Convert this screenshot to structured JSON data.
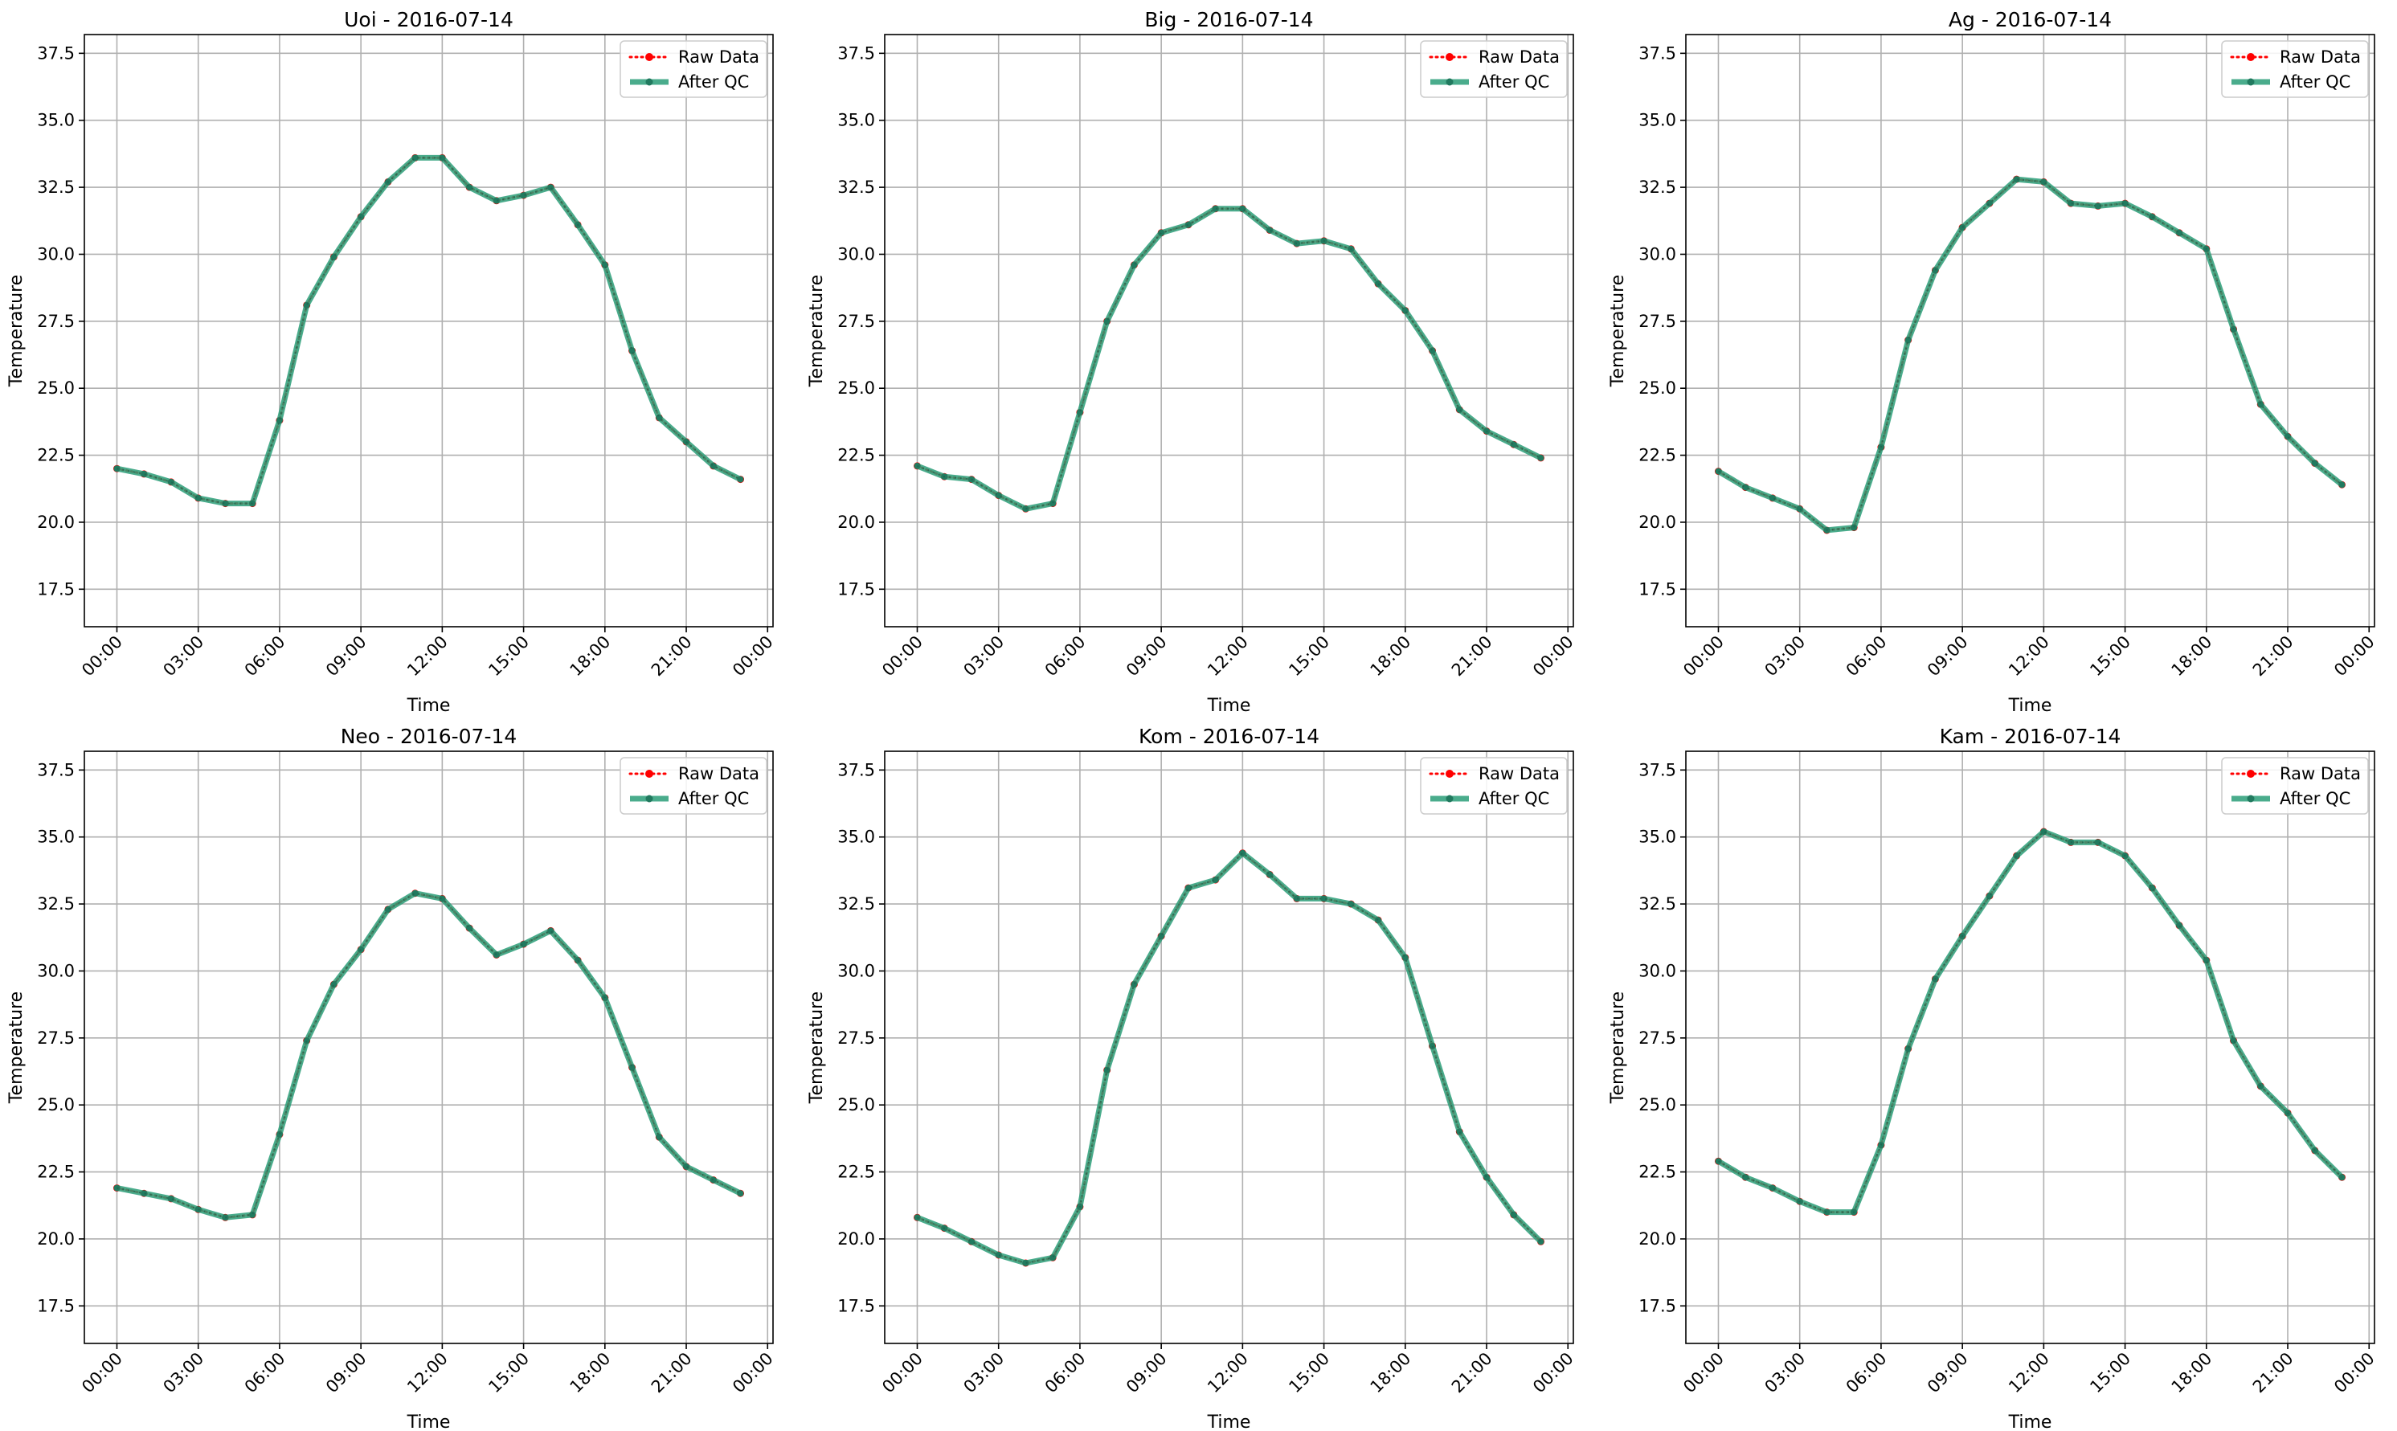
{
  "figure": {
    "colors": {
      "raw": "#ff0000",
      "qc": "#2a9d78",
      "grid": "#b0b0b0",
      "axes": "#000000"
    }
  },
  "chart_data": [
    {
      "type": "line",
      "title": "Uoi - 2016-07-14",
      "xlabel": "Time",
      "ylabel": "Temperature",
      "x_ticks": [
        "00:00",
        "03:00",
        "06:00",
        "09:00",
        "12:00",
        "15:00",
        "18:00",
        "21:00",
        "00:00"
      ],
      "y_ticks": [
        "17.5",
        "20.0",
        "22.5",
        "25.0",
        "27.5",
        "30.0",
        "32.5",
        "35.0",
        "37.5"
      ],
      "ylim": [
        16.1,
        38.2
      ],
      "xlim_hours": [
        -1.2,
        24.2
      ],
      "grid": true,
      "legend": "top-right",
      "x": [
        "00:00",
        "01:00",
        "02:00",
        "03:00",
        "04:00",
        "05:00",
        "06:00",
        "07:00",
        "08:00",
        "09:00",
        "10:00",
        "11:00",
        "12:00",
        "13:00",
        "14:00",
        "15:00",
        "16:00",
        "17:00",
        "18:00",
        "19:00",
        "20:00",
        "21:00",
        "22:00",
        "23:00"
      ],
      "series": [
        {
          "name": "Raw Data",
          "style": "dotted",
          "values": [
            22.0,
            21.8,
            21.5,
            20.9,
            20.7,
            20.7,
            23.8,
            28.1,
            29.9,
            31.4,
            32.7,
            33.6,
            33.6,
            32.5,
            32.0,
            32.2,
            32.5,
            31.1,
            29.6,
            26.4,
            23.9,
            23.0,
            22.1,
            21.6
          ]
        },
        {
          "name": "After QC",
          "style": "solid",
          "values": [
            22.0,
            21.8,
            21.5,
            20.9,
            20.7,
            20.7,
            23.8,
            28.1,
            29.9,
            31.4,
            32.7,
            33.6,
            33.6,
            32.5,
            32.0,
            32.2,
            32.5,
            31.1,
            29.6,
            26.4,
            23.9,
            23.0,
            22.1,
            21.6
          ]
        }
      ]
    },
    {
      "type": "line",
      "title": "Big - 2016-07-14",
      "xlabel": "Time",
      "ylabel": "Temperature",
      "x_ticks": [
        "00:00",
        "03:00",
        "06:00",
        "09:00",
        "12:00",
        "15:00",
        "18:00",
        "21:00",
        "00:00"
      ],
      "y_ticks": [
        "17.5",
        "20.0",
        "22.5",
        "25.0",
        "27.5",
        "30.0",
        "32.5",
        "35.0",
        "37.5"
      ],
      "ylim": [
        16.1,
        38.2
      ],
      "xlim_hours": [
        -1.2,
        24.2
      ],
      "grid": true,
      "legend": "top-right",
      "x": [
        "00:00",
        "01:00",
        "02:00",
        "03:00",
        "04:00",
        "05:00",
        "06:00",
        "07:00",
        "08:00",
        "09:00",
        "10:00",
        "11:00",
        "12:00",
        "13:00",
        "14:00",
        "15:00",
        "16:00",
        "17:00",
        "18:00",
        "19:00",
        "20:00",
        "21:00",
        "22:00",
        "23:00"
      ],
      "series": [
        {
          "name": "Raw Data",
          "style": "dotted",
          "values": [
            22.1,
            21.7,
            21.6,
            21.0,
            20.5,
            20.7,
            24.1,
            27.5,
            29.6,
            30.8,
            31.1,
            31.7,
            31.7,
            30.9,
            30.4,
            30.5,
            30.2,
            28.9,
            27.9,
            26.4,
            24.2,
            23.4,
            22.9,
            22.4
          ]
        },
        {
          "name": "After QC",
          "style": "solid",
          "values": [
            22.1,
            21.7,
            21.6,
            21.0,
            20.5,
            20.7,
            24.1,
            27.5,
            29.6,
            30.8,
            31.1,
            31.7,
            31.7,
            30.9,
            30.4,
            30.5,
            30.2,
            28.9,
            27.9,
            26.4,
            24.2,
            23.4,
            22.9,
            22.4
          ]
        }
      ]
    },
    {
      "type": "line",
      "title": "Ag - 2016-07-14",
      "xlabel": "Time",
      "ylabel": "Temperature",
      "x_ticks": [
        "00:00",
        "03:00",
        "06:00",
        "09:00",
        "12:00",
        "15:00",
        "18:00",
        "21:00",
        "00:00"
      ],
      "y_ticks": [
        "17.5",
        "20.0",
        "22.5",
        "25.0",
        "27.5",
        "30.0",
        "32.5",
        "35.0",
        "37.5"
      ],
      "ylim": [
        16.1,
        38.2
      ],
      "xlim_hours": [
        -1.2,
        24.2
      ],
      "grid": true,
      "legend": "top-right",
      "x": [
        "00:00",
        "01:00",
        "02:00",
        "03:00",
        "04:00",
        "05:00",
        "06:00",
        "07:00",
        "08:00",
        "09:00",
        "10:00",
        "11:00",
        "12:00",
        "13:00",
        "14:00",
        "15:00",
        "16:00",
        "17:00",
        "18:00",
        "19:00",
        "20:00",
        "21:00",
        "22:00",
        "23:00"
      ],
      "series": [
        {
          "name": "Raw Data",
          "style": "dotted",
          "values": [
            21.9,
            21.3,
            20.9,
            20.5,
            19.7,
            19.8,
            22.8,
            26.8,
            29.4,
            31.0,
            31.9,
            32.8,
            32.7,
            31.9,
            31.8,
            31.9,
            31.4,
            30.8,
            30.2,
            27.2,
            24.4,
            23.2,
            22.2,
            21.4
          ]
        },
        {
          "name": "After QC",
          "style": "solid",
          "values": [
            21.9,
            21.3,
            20.9,
            20.5,
            19.7,
            19.8,
            22.8,
            26.8,
            29.4,
            31.0,
            31.9,
            32.8,
            32.7,
            31.9,
            31.8,
            31.9,
            31.4,
            30.8,
            30.2,
            27.2,
            24.4,
            23.2,
            22.2,
            21.4
          ]
        }
      ]
    },
    {
      "type": "line",
      "title": "Neo - 2016-07-14",
      "xlabel": "Time",
      "ylabel": "Temperature",
      "x_ticks": [
        "00:00",
        "03:00",
        "06:00",
        "09:00",
        "12:00",
        "15:00",
        "18:00",
        "21:00",
        "00:00"
      ],
      "y_ticks": [
        "17.5",
        "20.0",
        "22.5",
        "25.0",
        "27.5",
        "30.0",
        "32.5",
        "35.0",
        "37.5"
      ],
      "ylim": [
        16.1,
        38.2
      ],
      "xlim_hours": [
        -1.2,
        24.2
      ],
      "grid": true,
      "legend": "top-right",
      "x": [
        "00:00",
        "01:00",
        "02:00",
        "03:00",
        "04:00",
        "05:00",
        "06:00",
        "07:00",
        "08:00",
        "09:00",
        "10:00",
        "11:00",
        "12:00",
        "13:00",
        "14:00",
        "15:00",
        "16:00",
        "17:00",
        "18:00",
        "19:00",
        "20:00",
        "21:00",
        "22:00",
        "23:00"
      ],
      "series": [
        {
          "name": "Raw Data",
          "style": "dotted",
          "values": [
            21.9,
            21.7,
            21.5,
            21.1,
            20.8,
            20.9,
            23.9,
            27.4,
            29.5,
            30.8,
            32.3,
            32.9,
            32.7,
            31.6,
            30.6,
            31.0,
            31.5,
            30.4,
            29.0,
            26.4,
            23.8,
            22.7,
            22.2,
            21.7
          ]
        },
        {
          "name": "After QC",
          "style": "solid",
          "values": [
            21.9,
            21.7,
            21.5,
            21.1,
            20.8,
            20.9,
            23.9,
            27.4,
            29.5,
            30.8,
            32.3,
            32.9,
            32.7,
            31.6,
            30.6,
            31.0,
            31.5,
            30.4,
            29.0,
            26.4,
            23.8,
            22.7,
            22.2,
            21.7
          ]
        }
      ]
    },
    {
      "type": "line",
      "title": "Kom - 2016-07-14",
      "xlabel": "Time",
      "ylabel": "Temperature",
      "x_ticks": [
        "00:00",
        "03:00",
        "06:00",
        "09:00",
        "12:00",
        "15:00",
        "18:00",
        "21:00",
        "00:00"
      ],
      "y_ticks": [
        "17.5",
        "20.0",
        "22.5",
        "25.0",
        "27.5",
        "30.0",
        "32.5",
        "35.0",
        "37.5"
      ],
      "ylim": [
        16.1,
        38.2
      ],
      "xlim_hours": [
        -1.2,
        24.2
      ],
      "grid": true,
      "legend": "top-right",
      "x": [
        "00:00",
        "01:00",
        "02:00",
        "03:00",
        "04:00",
        "05:00",
        "06:00",
        "07:00",
        "08:00",
        "09:00",
        "10:00",
        "11:00",
        "12:00",
        "13:00",
        "14:00",
        "15:00",
        "16:00",
        "17:00",
        "18:00",
        "19:00",
        "20:00",
        "21:00",
        "22:00",
        "23:00"
      ],
      "series": [
        {
          "name": "Raw Data",
          "style": "dotted",
          "values": [
            20.8,
            20.4,
            19.9,
            19.4,
            19.1,
            19.3,
            21.2,
            26.3,
            29.5,
            31.3,
            33.1,
            33.4,
            34.4,
            33.6,
            32.7,
            32.7,
            32.5,
            31.9,
            30.5,
            27.2,
            24.0,
            22.3,
            20.9,
            19.9
          ]
        },
        {
          "name": "After QC",
          "style": "solid",
          "values": [
            20.8,
            20.4,
            19.9,
            19.4,
            19.1,
            19.3,
            21.2,
            26.3,
            29.5,
            31.3,
            33.1,
            33.4,
            34.4,
            33.6,
            32.7,
            32.7,
            32.5,
            31.9,
            30.5,
            27.2,
            24.0,
            22.3,
            20.9,
            19.9
          ]
        }
      ]
    },
    {
      "type": "line",
      "title": "Kam - 2016-07-14",
      "xlabel": "Time",
      "ylabel": "Temperature",
      "x_ticks": [
        "00:00",
        "03:00",
        "06:00",
        "09:00",
        "12:00",
        "15:00",
        "18:00",
        "21:00",
        "00:00"
      ],
      "y_ticks": [
        "17.5",
        "20.0",
        "22.5",
        "25.0",
        "27.5",
        "30.0",
        "32.5",
        "35.0",
        "37.5"
      ],
      "ylim": [
        16.1,
        38.2
      ],
      "xlim_hours": [
        -1.2,
        24.2
      ],
      "grid": true,
      "legend": "top-right",
      "x": [
        "00:00",
        "01:00",
        "02:00",
        "03:00",
        "04:00",
        "05:00",
        "06:00",
        "07:00",
        "08:00",
        "09:00",
        "10:00",
        "11:00",
        "12:00",
        "13:00",
        "14:00",
        "15:00",
        "16:00",
        "17:00",
        "18:00",
        "19:00",
        "20:00",
        "21:00",
        "22:00",
        "23:00"
      ],
      "series": [
        {
          "name": "Raw Data",
          "style": "dotted",
          "values": [
            22.9,
            22.3,
            21.9,
            21.4,
            21.0,
            21.0,
            23.5,
            27.1,
            29.7,
            31.3,
            32.8,
            34.3,
            35.2,
            34.8,
            34.8,
            34.3,
            33.1,
            31.7,
            30.4,
            27.4,
            25.7,
            24.7,
            23.3,
            22.3
          ]
        },
        {
          "name": "After QC",
          "style": "solid",
          "values": [
            22.9,
            22.3,
            21.9,
            21.4,
            21.0,
            21.0,
            23.5,
            27.1,
            29.7,
            31.3,
            32.8,
            34.3,
            35.2,
            34.8,
            34.8,
            34.3,
            33.1,
            31.7,
            30.4,
            27.4,
            25.7,
            24.7,
            23.3,
            22.3
          ]
        }
      ]
    }
  ]
}
